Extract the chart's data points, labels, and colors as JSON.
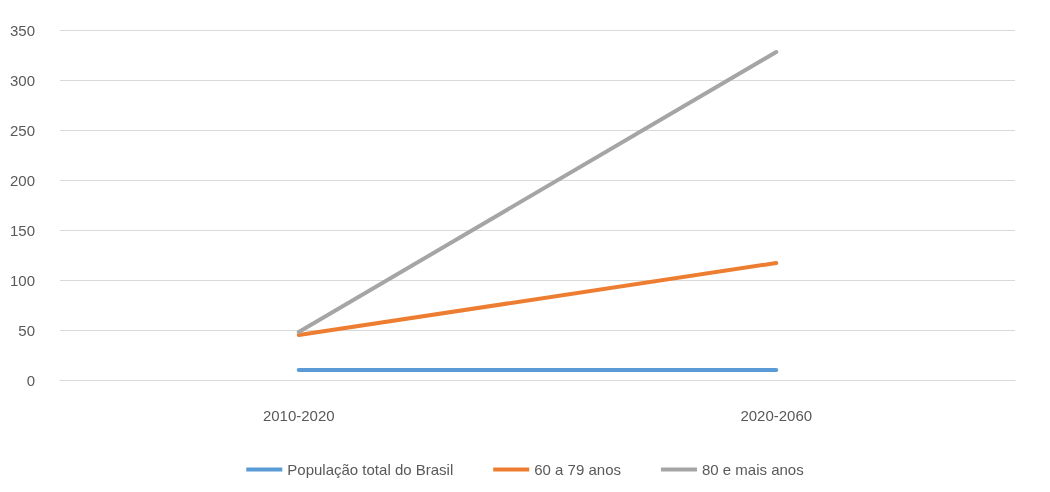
{
  "chart_data": {
    "type": "line",
    "categories": [
      "2010-2020",
      "2020-2060"
    ],
    "series": [
      {
        "name": "População total do Brasil",
        "color": "#5b9bd5",
        "values": [
          10,
          10
        ]
      },
      {
        "name": "60 a 79 anos",
        "color": "#ed7d31",
        "values": [
          45,
          117
        ]
      },
      {
        "name": "80 e mais anos",
        "color": "#a5a5a5",
        "values": [
          48,
          328
        ]
      }
    ],
    "ylim": [
      0,
      350
    ],
    "yticks": [
      0,
      50,
      100,
      150,
      200,
      250,
      300,
      350
    ],
    "grid": "y",
    "legend": "bottom",
    "marker": "none",
    "line_style": "solid"
  }
}
